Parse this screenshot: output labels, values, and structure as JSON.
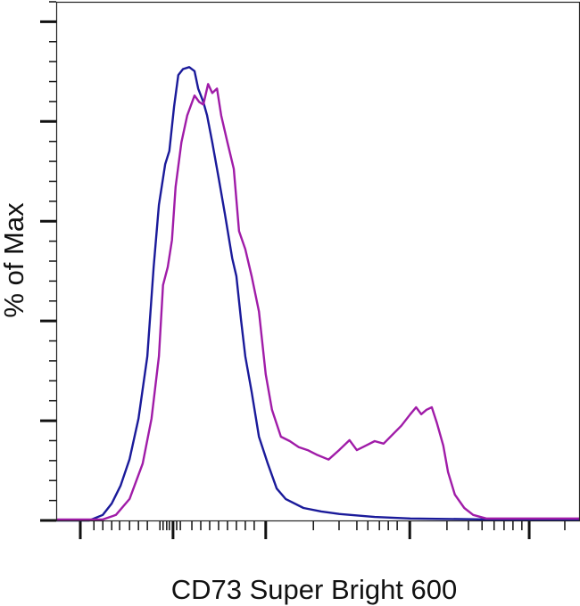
{
  "chart_data": {
    "type": "line",
    "title": "",
    "xlabel": "CD73 Super Bright 600",
    "ylabel": "% of Max",
    "xlim": [
      0,
      1000
    ],
    "ylim": [
      0,
      104
    ],
    "x_scale": "biexponential (unlabeled)",
    "grid": false,
    "legend": "none",
    "y_major_ticks": [
      0,
      20,
      40,
      60,
      80,
      100
    ],
    "y_minor_step": 4,
    "x_major_ticks": [
      46,
      223,
      400,
      675,
      903
    ],
    "x_minor_ticks": [
      72,
      89,
      106,
      121,
      140,
      157,
      174,
      198,
      204,
      211,
      216,
      230,
      237,
      259,
      276,
      293,
      310,
      327,
      344,
      361,
      378,
      491,
      540,
      574,
      595,
      617,
      634,
      651,
      746,
      787,
      813,
      836,
      855,
      872,
      889,
      971
    ],
    "series": [
      {
        "color": "#1a1a9a",
        "x": [
          0,
          63,
          89,
          106,
          123,
          140,
          157,
          174,
          186,
          196,
          208,
          216,
          225,
          233,
          242,
          254,
          264,
          271,
          281,
          288,
          298,
          310,
          322,
          336,
          344,
          353,
          361,
          373,
          387,
          404,
          421,
          438,
          472,
          506,
          540,
          608,
          676,
          830,
          1000
        ],
        "y": [
          0,
          0,
          1.1,
          3.4,
          7.0,
          12.3,
          20.4,
          32.9,
          50.8,
          63.3,
          71.4,
          74.1,
          83.0,
          89.3,
          90.5,
          90.9,
          90.1,
          86.6,
          83.9,
          81.2,
          75.8,
          68.7,
          61.5,
          52.6,
          49.0,
          40.1,
          32.9,
          25.8,
          16.8,
          11.4,
          6.4,
          4.3,
          2.5,
          1.8,
          1.3,
          0.7,
          0.4,
          0.2,
          0.2
        ]
      },
      {
        "color": "#a01ca8",
        "x": [
          0,
          89,
          114,
          140,
          165,
          182,
          196,
          204,
          213,
          221,
          228,
          239,
          250,
          264,
          273,
          281,
          290,
          298,
          307,
          315,
          327,
          339,
          349,
          361,
          373,
          387,
          400,
          412,
          429,
          446,
          463,
          480,
          497,
          520,
          540,
          560,
          574,
          591,
          608,
          625,
          642,
          659,
          676,
          687,
          697,
          707,
          717,
          727,
          739,
          748,
          761,
          779,
          796,
          821,
          1000
        ],
        "y": [
          0.2,
          0.2,
          1.1,
          4.3,
          11.4,
          20.4,
          32.9,
          47.2,
          50.8,
          56.2,
          66.9,
          75.8,
          81.2,
          85.2,
          83.9,
          83.4,
          87.5,
          85.7,
          86.6,
          81.2,
          75.8,
          70.5,
          58.0,
          54.4,
          49.0,
          41.9,
          29.3,
          22.2,
          16.8,
          15.9,
          14.7,
          14.1,
          13.2,
          12.2,
          14.1,
          16.1,
          14.1,
          15.0,
          15.9,
          15.4,
          17.2,
          19.0,
          21.3,
          22.7,
          21.3,
          22.2,
          22.7,
          19.5,
          15.0,
          9.7,
          5.2,
          2.5,
          1.1,
          0.4,
          0.4
        ]
      }
    ]
  }
}
